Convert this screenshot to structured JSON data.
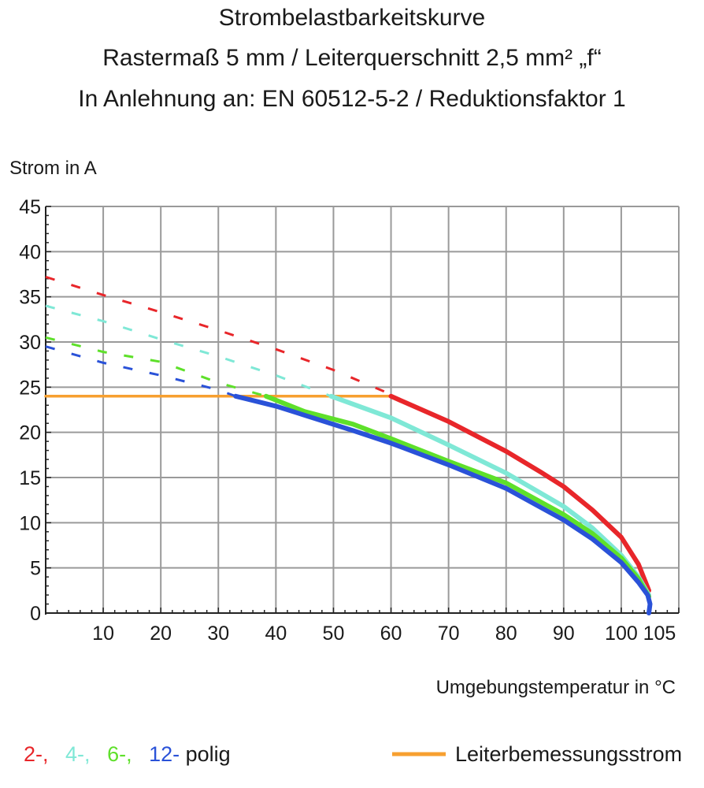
{
  "chart_data": {
    "type": "line",
    "title": [
      "Strombelastbarkeitskurve",
      "Rastermaß 5 mm / Leiterquerschnitt 2,5 mm² „f“",
      "In Anlehnung an: EN 60512-5-2 / Reduktionsfaktor 1"
    ],
    "ylabel": "Strom in A",
    "xlabel": "Umgebungstemperatur in °C",
    "xlim": [
      0,
      110
    ],
    "ylim": [
      0,
      45
    ],
    "grid": true,
    "x_ticks": [
      10,
      20,
      30,
      40,
      50,
      60,
      70,
      80,
      90,
      100,
      105
    ],
    "x_tick_labels": [
      "10",
      "20",
      "30",
      "40",
      "50",
      "60",
      "70",
      "80",
      "90",
      "100",
      "105"
    ],
    "y_ticks": [
      0,
      5,
      10,
      15,
      20,
      25,
      30,
      35,
      40,
      45
    ],
    "y_tick_labels": [
      "0",
      "5",
      "10",
      "15",
      "20",
      "25",
      "30",
      "35",
      "40",
      "45"
    ],
    "series": [
      {
        "name": "2-",
        "color": "#e8262a",
        "dashed": [
          [
            0,
            37.2
          ],
          [
            10,
            35.2
          ],
          [
            20,
            33.3
          ],
          [
            30,
            31.3
          ],
          [
            40,
            29.2
          ],
          [
            50,
            26.9
          ],
          [
            60,
            24.2
          ]
        ],
        "solid": [
          [
            60,
            24.0
          ],
          [
            70,
            21.2
          ],
          [
            80,
            17.9
          ],
          [
            86,
            15.6
          ],
          [
            90,
            14.0
          ],
          [
            95,
            11.4
          ],
          [
            100,
            8.4
          ],
          [
            103,
            5.4
          ],
          [
            104.8,
            2.5
          ]
        ]
      },
      {
        "name": "4-",
        "color": "#7fe8d6",
        "dashed": [
          [
            0,
            34.0
          ],
          [
            10,
            32.3
          ],
          [
            20,
            30.3
          ],
          [
            30,
            28.4
          ],
          [
            40,
            26.3
          ],
          [
            49.6,
            24.0
          ]
        ],
        "solid": [
          [
            49.6,
            24.0
          ],
          [
            60,
            21.6
          ],
          [
            70,
            18.6
          ],
          [
            80,
            15.5
          ],
          [
            90,
            11.8
          ],
          [
            95,
            9.4
          ],
          [
            100,
            6.4
          ],
          [
            103,
            4.0
          ],
          [
            104.8,
            2.0
          ]
        ]
      },
      {
        "name": "6-",
        "color": "#5ee02a",
        "dashed": [
          [
            0,
            30.5
          ],
          [
            10,
            28.9
          ],
          [
            20,
            27.8
          ],
          [
            30,
            25.5
          ],
          [
            38.3,
            24.0
          ]
        ],
        "solid": [
          [
            38.3,
            24.0
          ],
          [
            45,
            22.3
          ],
          [
            53.4,
            20.9
          ],
          [
            60,
            19.3
          ],
          [
            70,
            16.8
          ],
          [
            80,
            14.4
          ],
          [
            90,
            10.9
          ],
          [
            95,
            8.8
          ],
          [
            100,
            6.1
          ],
          [
            103,
            3.8
          ],
          [
            104.8,
            1.8
          ]
        ]
      },
      {
        "name": "12-",
        "color": "#2a52d8",
        "dashed": [
          [
            0,
            29.5
          ],
          [
            10,
            27.7
          ],
          [
            20,
            26.3
          ],
          [
            30,
            24.7
          ],
          [
            33,
            24.0
          ]
        ],
        "solid": [
          [
            33,
            24.0
          ],
          [
            40,
            22.9
          ],
          [
            53.4,
            20.2
          ],
          [
            60,
            18.8
          ],
          [
            70,
            16.4
          ],
          [
            80,
            13.8
          ],
          [
            90,
            10.3
          ],
          [
            95,
            8.2
          ],
          [
            100,
            5.6
          ],
          [
            103,
            3.4
          ],
          [
            104.6,
            2.0
          ],
          [
            105,
            1.0
          ],
          [
            104.8,
            0
          ]
        ]
      },
      {
        "name": "Leiterbemessungsstrom",
        "color": "#f7a030",
        "solid": [
          [
            0,
            24.0
          ],
          [
            60,
            24.0
          ]
        ]
      }
    ],
    "legend": {
      "placement": "bottom",
      "pole_labels": [
        "2-,",
        "4-,",
        "6-,",
        "12-"
      ],
      "pole_suffix": "polig",
      "rated_current_label": "Leiterbemessungsstrom"
    }
  }
}
